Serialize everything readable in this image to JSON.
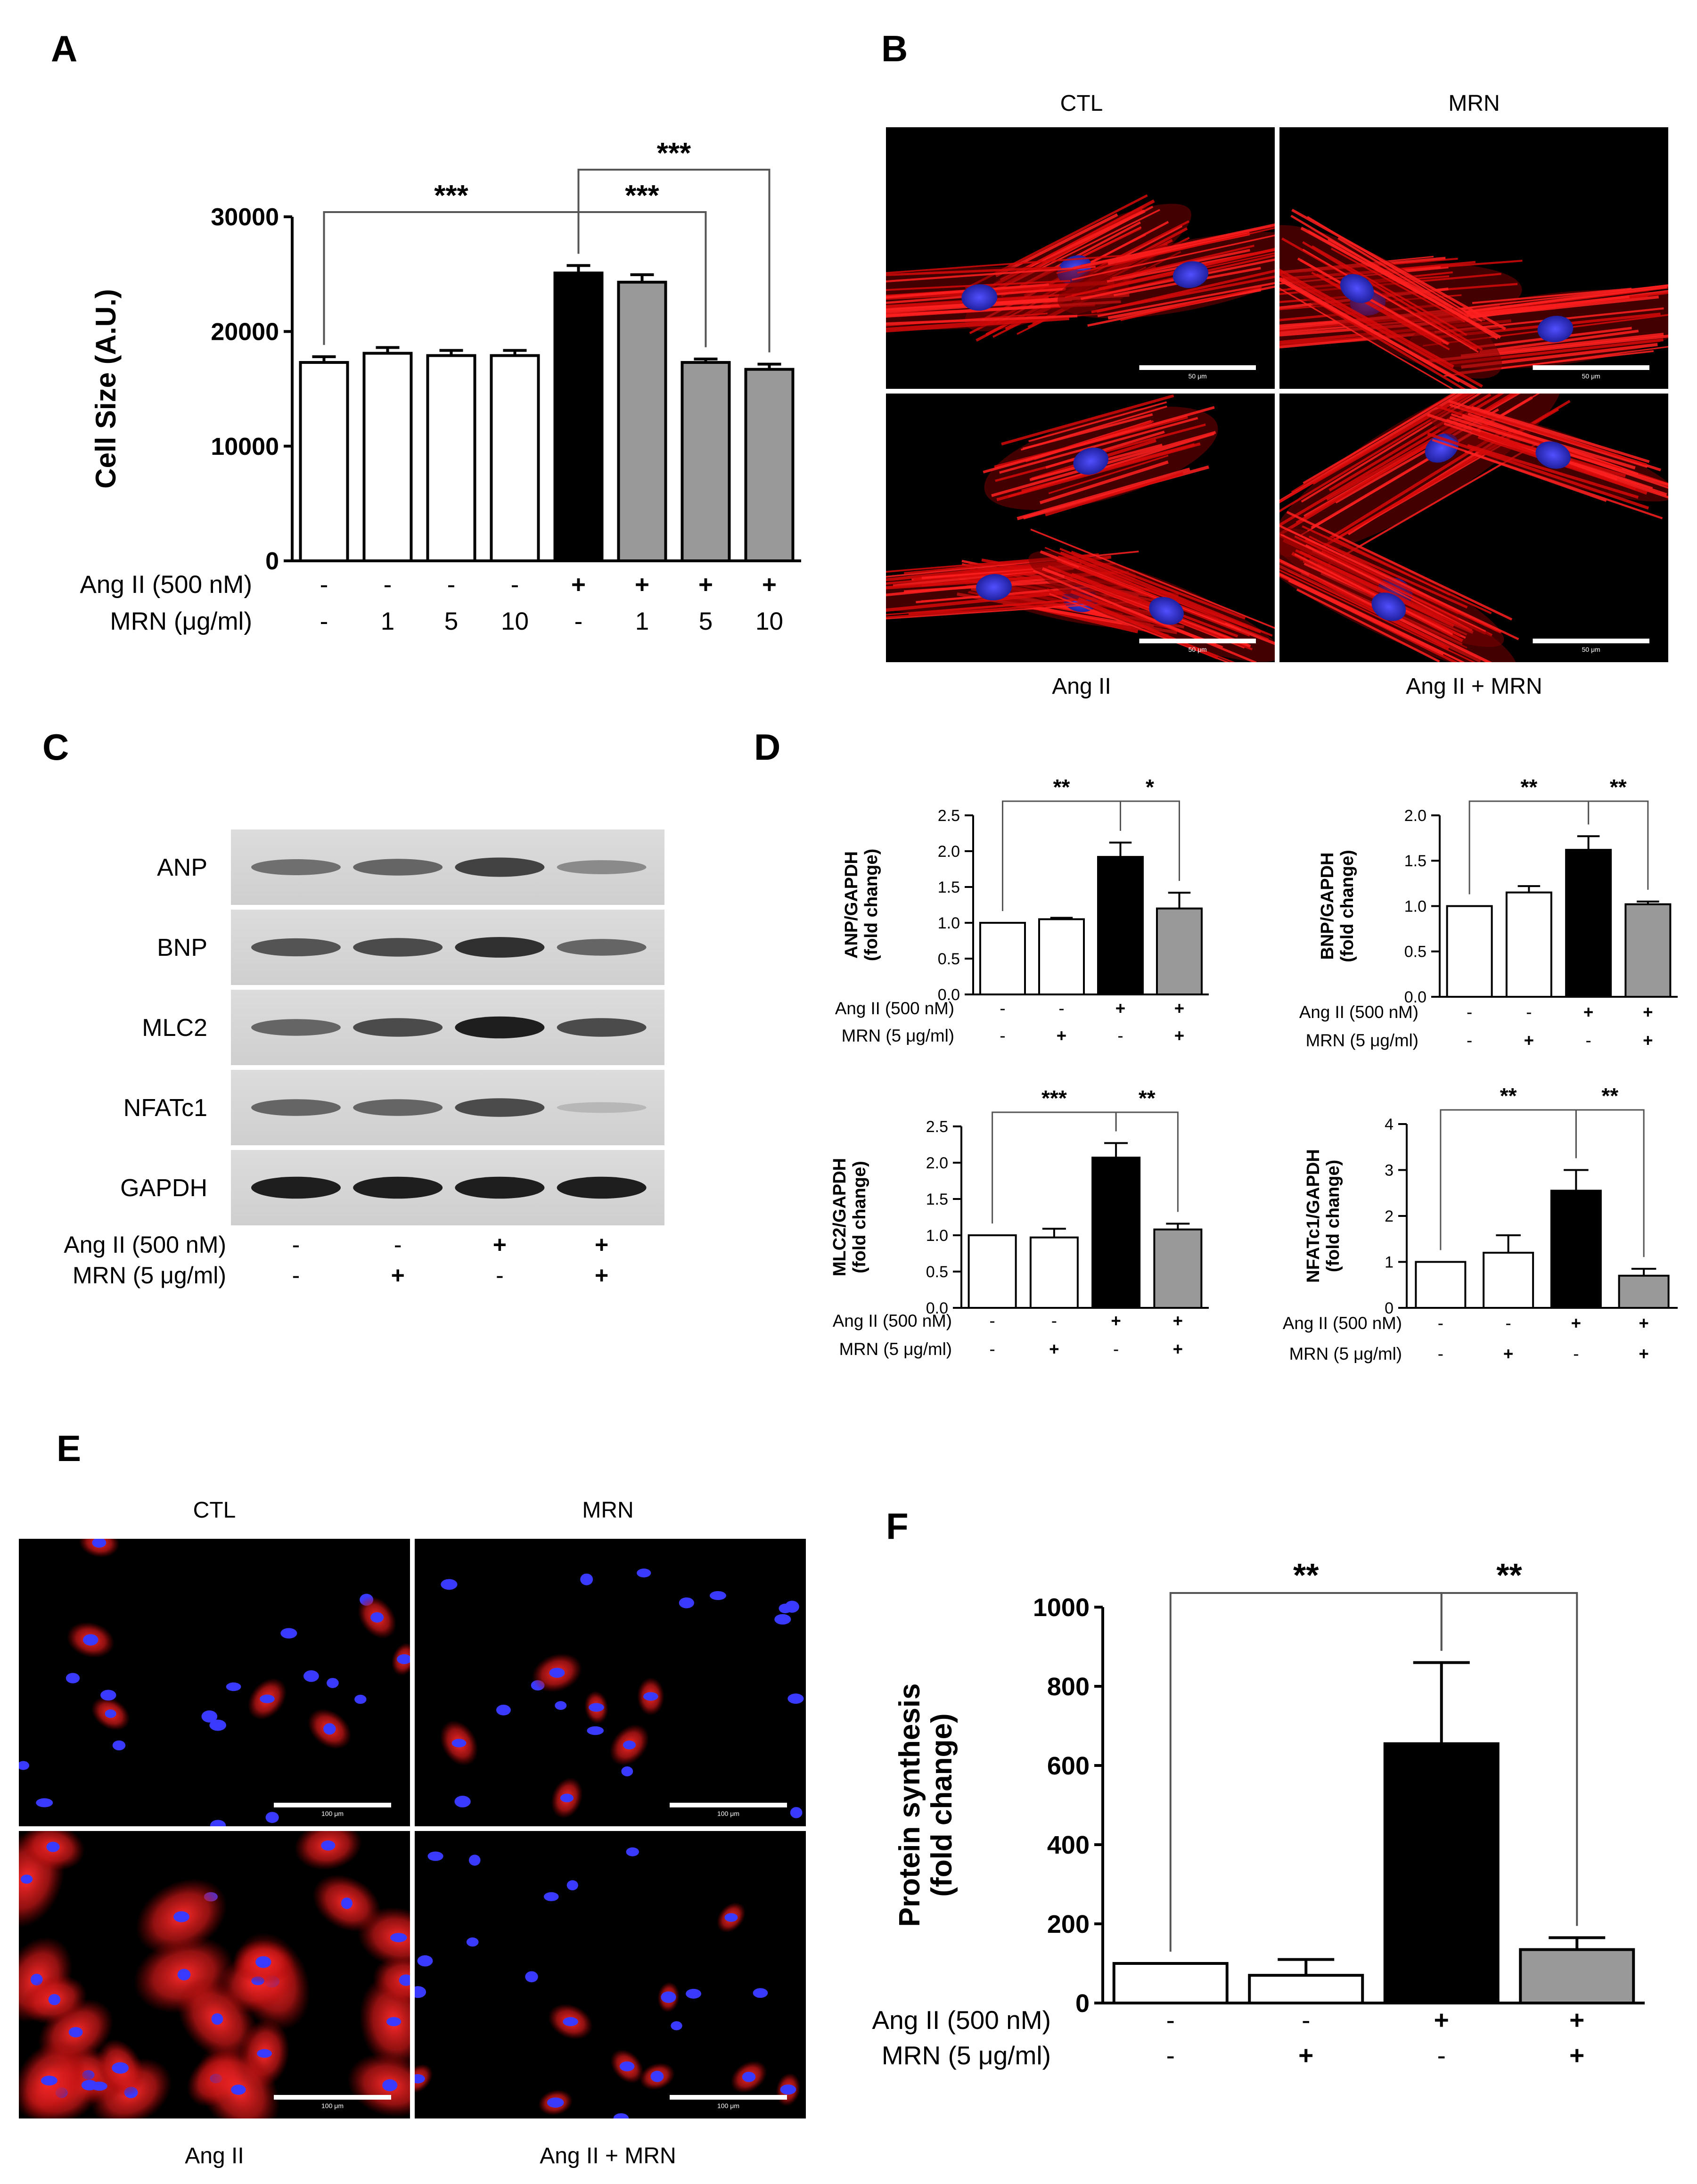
{
  "panels": {
    "A": "A",
    "B": "B",
    "C": "C",
    "D": "D",
    "E": "E",
    "F": "F"
  },
  "colors": {
    "open": "#ffffff",
    "black": "#000000",
    "gray": "#999999",
    "gray_dark": "#808080",
    "actin": "#e01818",
    "nucleus": "#3030d8"
  },
  "chart_data": [
    {
      "panel": "A",
      "type": "bar",
      "ylabel": "Cell Size (A.U.)",
      "ylim": [
        0,
        30000
      ],
      "yticks": [
        "0",
        "10000",
        "20000",
        "30000"
      ],
      "values": [
        17300,
        18100,
        17900,
        17900,
        25100,
        24300,
        17300,
        16700
      ],
      "errors": [
        500,
        500,
        450,
        450,
        650,
        650,
        300,
        450
      ],
      "fills": [
        "open",
        "open",
        "open",
        "open",
        "black",
        "gray",
        "gray",
        "gray"
      ],
      "treatments": [
        {
          "label": "Ang II (500 nM)",
          "signs": [
            "-",
            "-",
            "-",
            "-",
            "+",
            "+",
            "+",
            "+"
          ]
        },
        {
          "label": "MRN (μg/ml)",
          "signs": [
            "-",
            "1",
            "5",
            "10",
            "-",
            "1",
            "5",
            "10"
          ]
        }
      ],
      "significance": [
        {
          "from": 0,
          "to": 4,
          "label": "***",
          "level": 1
        },
        {
          "from": 4,
          "to": 6,
          "label": "***",
          "level": 1
        },
        {
          "from": 4,
          "to": 7,
          "label": "***",
          "level": 2
        }
      ]
    },
    {
      "panel": "D1",
      "type": "bar",
      "ylabel": "ANP/GAPDH\n(fold change)",
      "ylim": [
        0,
        2.5
      ],
      "yticks": [
        "0.0",
        "0.5",
        "1.0",
        "1.5",
        "2.0",
        "2.5"
      ],
      "values": [
        1.0,
        1.05,
        1.92,
        1.2
      ],
      "errors": [
        0,
        0.02,
        0.2,
        0.22
      ],
      "fills": [
        "open",
        "open",
        "black",
        "gray"
      ],
      "treatments": [
        {
          "label": "Ang II (500 nM)",
          "signs": [
            "-",
            "-",
            "+",
            "+"
          ]
        },
        {
          "label": "MRN (5 μg/ml)",
          "signs": [
            "-",
            "+",
            "-",
            "+"
          ]
        }
      ],
      "significance": [
        {
          "from": 0,
          "to": 2,
          "label": "**",
          "level": 1
        },
        {
          "from": 2,
          "to": 3,
          "label": "*",
          "level": 1
        }
      ]
    },
    {
      "panel": "D2",
      "type": "bar",
      "ylabel": "BNP/GAPDH\n(fold change)",
      "ylim": [
        0,
        2.0
      ],
      "yticks": [
        "0.0",
        "0.5",
        "1.0",
        "1.5",
        "2.0"
      ],
      "values": [
        1.0,
        1.15,
        1.62,
        1.02
      ],
      "errors": [
        0,
        0.07,
        0.15,
        0.03
      ],
      "fills": [
        "open",
        "open",
        "black",
        "gray"
      ],
      "treatments": [
        {
          "label": "Ang II (500 nM)",
          "signs": [
            "-",
            "-",
            "+",
            "+"
          ]
        },
        {
          "label": "MRN (5 μg/ml)",
          "signs": [
            "-",
            "+",
            "-",
            "+"
          ]
        }
      ],
      "significance": [
        {
          "from": 0,
          "to": 2,
          "label": "**",
          "level": 1
        },
        {
          "from": 2,
          "to": 3,
          "label": "**",
          "level": 1
        }
      ]
    },
    {
      "panel": "D3",
      "type": "bar",
      "ylabel": "MLC2/GAPDH\n(fold change)",
      "ylim": [
        0,
        2.5
      ],
      "yticks": [
        "0.0",
        "0.5",
        "1.0",
        "1.5",
        "2.0",
        "2.5"
      ],
      "values": [
        1.0,
        0.97,
        2.07,
        1.08
      ],
      "errors": [
        0,
        0.12,
        0.2,
        0.08
      ],
      "fills": [
        "open",
        "open",
        "black",
        "gray"
      ],
      "treatments": [
        {
          "label": "Ang II (500 nM)",
          "signs": [
            "-",
            "-",
            "+",
            "+"
          ]
        },
        {
          "label": "MRN (5 μg/ml)",
          "signs": [
            "-",
            "+",
            "-",
            "+"
          ]
        }
      ],
      "significance": [
        {
          "from": 0,
          "to": 2,
          "label": "***",
          "level": 1
        },
        {
          "from": 2,
          "to": 3,
          "label": "**",
          "level": 1
        }
      ]
    },
    {
      "panel": "D4",
      "type": "bar",
      "ylabel": "NFATc1/GAPDH\n(fold change)",
      "ylim": [
        0,
        4
      ],
      "yticks": [
        "0",
        "1",
        "2",
        "3",
        "4"
      ],
      "values": [
        1.0,
        1.2,
        2.55,
        0.7
      ],
      "errors": [
        0,
        0.38,
        0.45,
        0.15
      ],
      "fills": [
        "open",
        "open",
        "black",
        "gray"
      ],
      "treatments": [
        {
          "label": "Ang II (500 nM)",
          "signs": [
            "-",
            "-",
            "+",
            "+"
          ]
        },
        {
          "label": "MRN (5 μg/ml)",
          "signs": [
            "-",
            "+",
            "-",
            "+"
          ]
        }
      ],
      "significance": [
        {
          "from": 0,
          "to": 2,
          "label": "**",
          "level": 1
        },
        {
          "from": 2,
          "to": 3,
          "label": "**",
          "level": 1
        }
      ]
    },
    {
      "panel": "F",
      "type": "bar",
      "ylabel": "Protein synthesis\n(fold change)",
      "ylim": [
        0,
        1000
      ],
      "yticks": [
        "0",
        "200",
        "400",
        "600",
        "800",
        "1000"
      ],
      "values": [
        100,
        70,
        655,
        135
      ],
      "errors": [
        0,
        40,
        205,
        30
      ],
      "fills": [
        "open",
        "open",
        "black",
        "gray"
      ],
      "treatments": [
        {
          "label": "Ang II (500 nM)",
          "signs": [
            "-",
            "-",
            "+",
            "+"
          ]
        },
        {
          "label": "MRN (5 μg/ml)",
          "signs": [
            "-",
            "+",
            "-",
            "+"
          ]
        }
      ],
      "significance": [
        {
          "from": 0,
          "to": 2,
          "label": "**",
          "level": 1
        },
        {
          "from": 2,
          "to": 3,
          "label": "**",
          "level": 1
        }
      ]
    }
  ],
  "micrographs_B": {
    "col_titles": [
      "CTL",
      "MRN"
    ],
    "bottom_labels": [
      "Ang II",
      "Ang II + MRN"
    ],
    "scale_label": "50 μm"
  },
  "micrographs_E": {
    "col_titles": [
      "CTL",
      "MRN"
    ],
    "bottom_labels": [
      "Ang II",
      "Ang II + MRN"
    ],
    "scale_label": "100 μm"
  },
  "western_C": {
    "proteins": [
      "ANP",
      "BNP",
      "MLC2",
      "NFATc1",
      "GAPDH"
    ],
    "band_intensity": [
      [
        0.5,
        0.55,
        0.75,
        0.35
      ],
      [
        0.65,
        0.7,
        0.85,
        0.55
      ],
      [
        0.55,
        0.7,
        0.95,
        0.7
      ],
      [
        0.55,
        0.55,
        0.7,
        0.1
      ],
      [
        0.95,
        0.95,
        0.95,
        0.95
      ]
    ],
    "treatments": [
      {
        "label": "Ang II (500 nM)",
        "signs": [
          "-",
          "-",
          "+",
          "+"
        ]
      },
      {
        "label": "MRN (5 μg/ml)",
        "signs": [
          "-",
          "+",
          "-",
          "+"
        ]
      }
    ]
  }
}
